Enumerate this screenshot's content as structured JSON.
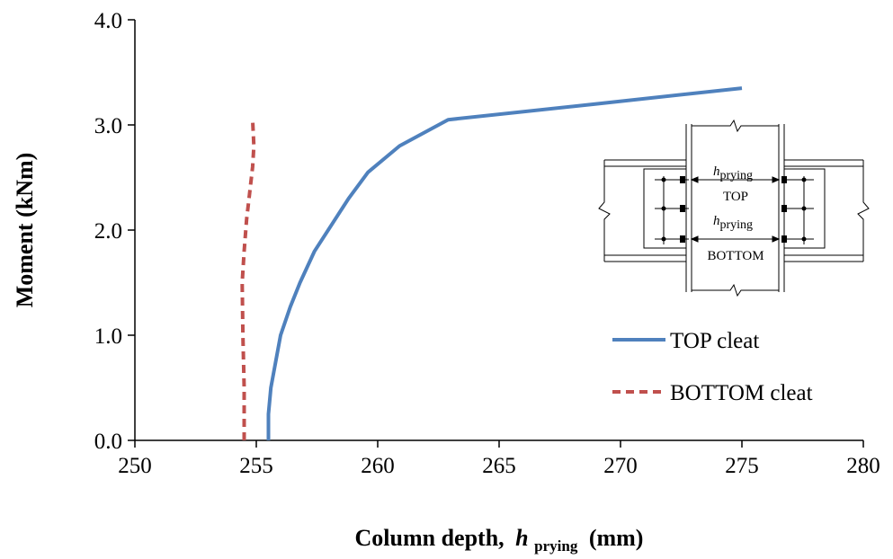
{
  "chart_data": {
    "type": "line",
    "xlabel_main": "Column depth,",
    "xlabel_var": "h",
    "xlabel_sub": "prying",
    "xlabel_unit": "(mm)",
    "ylabel": "Moment  (kNm)",
    "xlim": [
      250,
      280
    ],
    "ylim": [
      0,
      4
    ],
    "x_ticks": [
      "250",
      "255",
      "260",
      "265",
      "270",
      "275",
      "280"
    ],
    "y_ticks": [
      "0.0",
      "1.0",
      "2.0",
      "3.0",
      "4.0"
    ],
    "grid": false,
    "legend_position": "right",
    "series": [
      {
        "name": "TOP cleat",
        "color": "#4F81BD",
        "dash": "solid",
        "points": [
          [
            255.5,
            0.0
          ],
          [
            255.5,
            0.25
          ],
          [
            255.6,
            0.5
          ],
          [
            255.8,
            0.75
          ],
          [
            256.0,
            1.0
          ],
          [
            256.4,
            1.27
          ],
          [
            256.8,
            1.5
          ],
          [
            257.4,
            1.8
          ],
          [
            258.1,
            2.05
          ],
          [
            258.8,
            2.3
          ],
          [
            259.6,
            2.55
          ],
          [
            260.9,
            2.8
          ],
          [
            262.9,
            3.05
          ],
          [
            269.0,
            3.2
          ],
          [
            275.0,
            3.35
          ]
        ]
      },
      {
        "name": "BOTTOM cleat",
        "color": "#C0504D",
        "dash": "dashed",
        "points": [
          [
            254.5,
            0.0
          ],
          [
            254.5,
            0.5
          ],
          [
            254.45,
            1.0
          ],
          [
            254.42,
            1.5
          ],
          [
            254.5,
            1.8
          ],
          [
            254.6,
            2.1
          ],
          [
            254.7,
            2.3
          ],
          [
            254.85,
            2.6
          ],
          [
            254.9,
            2.8
          ],
          [
            254.85,
            3.05
          ]
        ]
      }
    ]
  },
  "inset": {
    "top_var": "h",
    "top_sub": "prying",
    "top_label": "TOP",
    "bottom_var": "h",
    "bottom_sub": "prying",
    "bottom_label": "BOTTOM"
  }
}
